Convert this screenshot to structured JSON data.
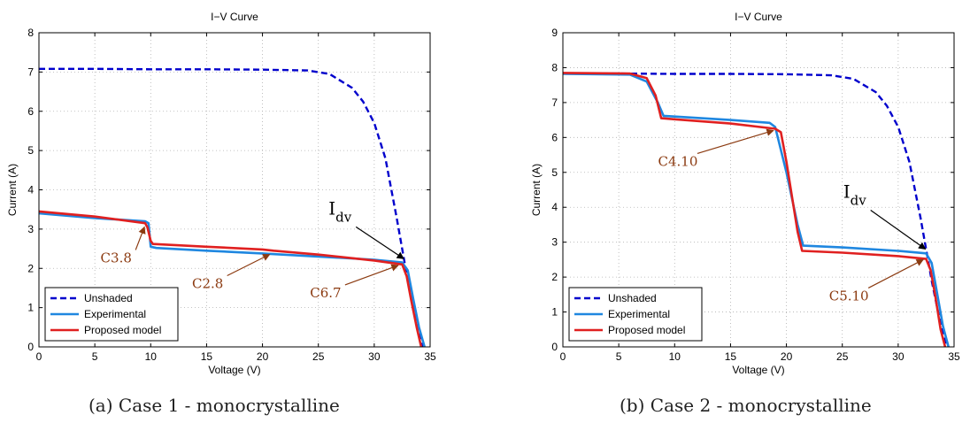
{
  "captions": [
    "(a) Case 1 - monocrystalline",
    "(b) Case 2 - monocrystalline"
  ],
  "chart_data": [
    {
      "type": "line",
      "title": "I−V Curve",
      "xlabel": "Voltage (V)",
      "ylabel": "Current (A)",
      "xlim": [
        0,
        35
      ],
      "ylim": [
        0,
        8
      ],
      "xticks": [
        0,
        5,
        10,
        15,
        20,
        25,
        30,
        35
      ],
      "yticks": [
        0,
        1,
        2,
        3,
        4,
        5,
        6,
        7,
        8
      ],
      "grid": true,
      "legend_position": "bottom-left",
      "series": [
        {
          "name": "Unshaded",
          "color": "#0000cc",
          "style": "dashed",
          "x": [
            0,
            5,
            10,
            15,
            20,
            24,
            26,
            28,
            29,
            30,
            31,
            32,
            32.5,
            33,
            33.5,
            34,
            34.3
          ],
          "y": [
            7.08,
            7.08,
            7.07,
            7.07,
            7.06,
            7.04,
            6.95,
            6.6,
            6.25,
            5.7,
            4.8,
            3.3,
            2.5,
            1.7,
            1.0,
            0.4,
            0
          ]
        },
        {
          "name": "Experimental",
          "color": "#1f87e0",
          "style": "solid",
          "x": [
            0,
            5,
            9.5,
            9.8,
            10,
            10.5,
            15,
            20,
            25,
            30,
            32.5,
            33,
            33.5,
            34,
            34.5
          ],
          "y": [
            3.4,
            3.28,
            3.2,
            3.15,
            2.55,
            2.52,
            2.45,
            2.38,
            2.3,
            2.22,
            2.15,
            1.95,
            1.2,
            0.5,
            0
          ]
        },
        {
          "name": "Proposed model",
          "color": "#e02020",
          "style": "solid",
          "x": [
            0,
            5,
            9.5,
            9.7,
            10,
            10.2,
            15,
            20,
            21,
            25,
            30,
            32.5,
            32.9,
            33.3,
            33.8,
            34.2
          ],
          "y": [
            3.45,
            3.32,
            3.15,
            3.05,
            2.7,
            2.62,
            2.55,
            2.48,
            2.45,
            2.35,
            2.2,
            2.1,
            1.8,
            1.2,
            0.5,
            0
          ]
        }
      ],
      "annotations": [
        {
          "text": "C3.8",
          "x": 9.6,
          "y": 3.1
        },
        {
          "text": "C2.8",
          "x": 20.8,
          "y": 2.4
        },
        {
          "text": "C6.7",
          "x": 32.3,
          "y": 2.12
        },
        {
          "text": "I",
          "subscript": "dv",
          "x": 32.8,
          "y": 2.2
        }
      ]
    },
    {
      "type": "line",
      "title": "I−V Curve",
      "xlabel": "Voltage (V)",
      "ylabel": "Current (A)",
      "xlim": [
        0,
        35
      ],
      "ylim": [
        0,
        9
      ],
      "xticks": [
        0,
        5,
        10,
        15,
        20,
        25,
        30,
        35
      ],
      "yticks": [
        0,
        1,
        2,
        3,
        4,
        5,
        6,
        7,
        8,
        9
      ],
      "grid": true,
      "legend_position": "bottom-left",
      "series": [
        {
          "name": "Unshaded",
          "color": "#0000cc",
          "style": "dashed",
          "x": [
            0,
            5,
            10,
            15,
            20,
            24,
            26,
            28,
            29,
            30,
            31,
            32,
            32.5,
            33,
            33.5,
            34,
            34.3
          ],
          "y": [
            7.83,
            7.83,
            7.82,
            7.82,
            7.81,
            7.78,
            7.68,
            7.3,
            6.9,
            6.3,
            5.3,
            3.7,
            2.8,
            1.9,
            1.1,
            0.4,
            0
          ]
        },
        {
          "name": "Experimental",
          "color": "#1f87e0",
          "style": "solid",
          "x": [
            0,
            6,
            7.5,
            8.5,
            9,
            10,
            15,
            18.5,
            19,
            20,
            21,
            21.5,
            25,
            30,
            32.5,
            33,
            33.5,
            34,
            34.5
          ],
          "y": [
            7.82,
            7.8,
            7.6,
            7.0,
            6.62,
            6.6,
            6.5,
            6.42,
            6.3,
            5.0,
            3.5,
            2.9,
            2.85,
            2.75,
            2.68,
            2.4,
            1.5,
            0.6,
            0
          ]
        },
        {
          "name": "Proposed model",
          "color": "#e02020",
          "style": "solid",
          "x": [
            0,
            6,
            7.5,
            8.3,
            8.8,
            10,
            15,
            19,
            19.5,
            20,
            21,
            21.4,
            25,
            30,
            32.5,
            32.9,
            33.3,
            33.8,
            34.2
          ],
          "y": [
            7.85,
            7.83,
            7.7,
            7.2,
            6.55,
            6.52,
            6.4,
            6.25,
            6.15,
            5.3,
            3.3,
            2.75,
            2.7,
            2.6,
            2.52,
            2.2,
            1.5,
            0.5,
            0
          ]
        }
      ],
      "annotations": [
        {
          "text": "C4.10",
          "x": 19.0,
          "y": 6.25
        },
        {
          "text": "C5.10",
          "x": 32.4,
          "y": 2.55
        },
        {
          "text": "I",
          "subscript": "dv",
          "x": 32.6,
          "y": 2.75
        }
      ]
    }
  ]
}
